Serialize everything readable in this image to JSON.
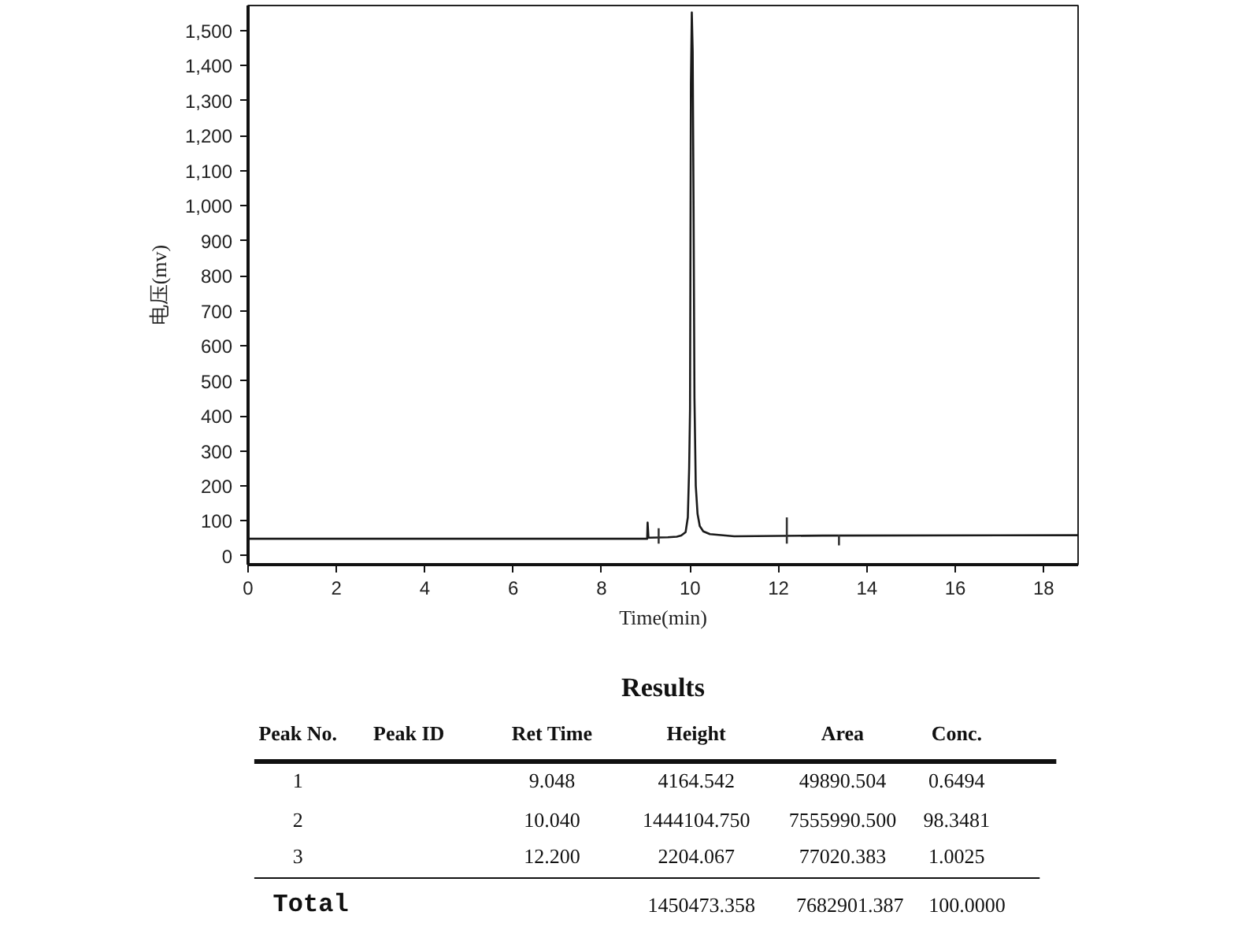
{
  "chart_data": {
    "type": "line",
    "xlabel": "Time(min)",
    "ylabel": "电压(mv)",
    "xlim": [
      0,
      18.78
    ],
    "ylim": [
      -25,
      1572
    ],
    "xticks": [
      0,
      2,
      4,
      6,
      8,
      10,
      12,
      14,
      16,
      18
    ],
    "yticks": [
      0,
      100,
      200,
      300,
      400,
      500,
      600,
      700,
      800,
      900,
      {
        "value": 1000,
        "label": "1,000"
      },
      {
        "value": 1100,
        "label": "1,100"
      },
      {
        "value": 1200,
        "label": "1,200"
      },
      {
        "value": 1300,
        "label": "1,300"
      },
      {
        "value": 1400,
        "label": "1,400"
      },
      {
        "value": 1500,
        "label": "1,500"
      }
    ],
    "series": [
      {
        "color": "#1a1a1a",
        "x": [
          0,
          9.0,
          9.03,
          9.04,
          9.06,
          9.1,
          9.5,
          9.7,
          9.8,
          9.9,
          9.95,
          9.98,
          10.0,
          10.02,
          10.04,
          10.06,
          10.08,
          10.1,
          10.13,
          10.17,
          10.22,
          10.3,
          10.45,
          11.0,
          12.0,
          13.0,
          18.78
        ],
        "values": [
          49,
          49,
          49,
          95,
          52,
          52,
          53,
          55,
          58,
          68,
          110,
          250,
          420,
          1350,
          1552,
          1440,
          1000,
          450,
          200,
          120,
          85,
          70,
          62,
          56,
          57,
          58,
          59
        ]
      },
      {
        "color": "#333333",
        "x": [
          9.29,
          9.29
        ],
        "values": [
          35,
          79
        ]
      },
      {
        "color": "#333333",
        "x": [
          12.19,
          12.19
        ],
        "values": [
          35,
          110
        ]
      },
      {
        "color": "#333333",
        "x": [
          13.37,
          13.37
        ],
        "values": [
          30,
          60
        ]
      }
    ],
    "annotations": [
      "Results",
      "Peak No.",
      "Peak ID",
      "Ret Time",
      "Height",
      "Area",
      "Conc.",
      "1",
      "9.048",
      "4164.542",
      "49890.504",
      "0.6494",
      "2",
      "10.040",
      "1444104.750",
      "7555990.500",
      "98.3481",
      "3",
      "12.200",
      "2204.067",
      "77020.383",
      "1.0025",
      "Total",
      "1450473.358",
      "7682901.387",
      "100.0000"
    ]
  }
}
